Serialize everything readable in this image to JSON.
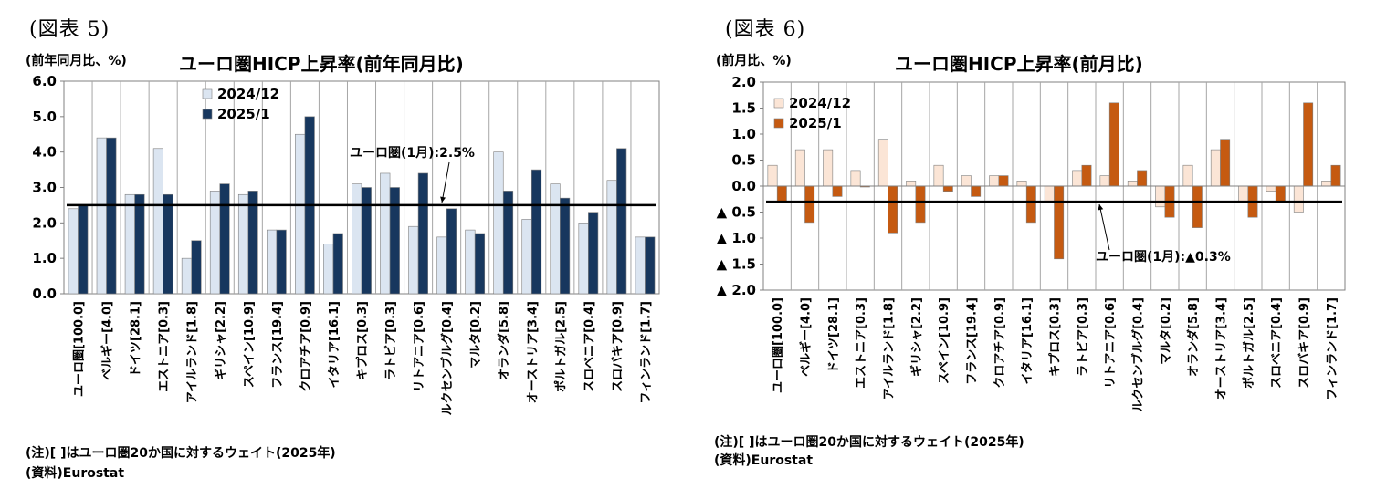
{
  "chart_data": [
    {
      "type": "bar",
      "figure_label": "(図表 5)",
      "title": "ユーロ圏HICP上昇率(前年同月比)",
      "unit_label": "(前年同月比、%)",
      "ylim": [
        0,
        6
      ],
      "ytick_labels": [
        "0.0",
        "1.0",
        "2.0",
        "3.0",
        "4.0",
        "5.0",
        "6.0"
      ],
      "categories": [
        "ユーロ圏[100.0]",
        "ベルギー[4.0]",
        "ドイツ[28.1]",
        "エストニア[0.3]",
        "アイルランド[1.8]",
        "ギリシャ[2.2]",
        "スペイン[10.9]",
        "フランス[19.4]",
        "クロアチア[0.9]",
        "イタリア[16.1]",
        "キプロス[0.3]",
        "ラトビア[0.3]",
        "リトアニア[0.6]",
        "ルクセンブルグ[0.4]",
        "マルタ[0.2]",
        "オランダ[5.8]",
        "オーストリア[3.4]",
        "ポルトガル[2.5]",
        "スロベニア[0.4]",
        "スロバキア[0.9]",
        "フィンランド[1.7]"
      ],
      "series": [
        {
          "name": "2024/12",
          "color": "#dbe5f1",
          "values": [
            2.4,
            4.4,
            2.8,
            4.1,
            1.0,
            2.9,
            2.8,
            1.8,
            4.5,
            1.4,
            3.1,
            3.4,
            1.9,
            1.6,
            1.8,
            4.0,
            2.1,
            3.1,
            2.0,
            3.2,
            1.6
          ]
        },
        {
          "name": "2025/1",
          "color": "#17375e",
          "values": [
            2.5,
            4.4,
            2.8,
            2.8,
            1.5,
            3.1,
            2.9,
            1.8,
            5.0,
            1.7,
            3.0,
            3.0,
            3.4,
            2.4,
            1.7,
            2.9,
            3.5,
            2.7,
            2.3,
            4.1,
            1.6
          ]
        }
      ],
      "reference_line": {
        "value": 2.5,
        "label": "ユーロ圏(1月):2.5%"
      },
      "grid": "vertical",
      "legend": "top-left",
      "note": "(注)[ ]はユーロ圏20か国に対するウェイト(2025年)",
      "source": "(資料)Eurostat"
    },
    {
      "type": "bar",
      "figure_label": "(図表 6)",
      "title": "ユーロ圏HICP上昇率(前月比)",
      "unit_label": "(前月比、%)",
      "ylim": [
        -2,
        2
      ],
      "ytick_labels": [
        "▲ 2.0",
        "▲ 1.5",
        "▲ 1.0",
        "▲ 0.5",
        "0.0",
        "0.5",
        "1.0",
        "1.5",
        "2.0"
      ],
      "categories": [
        "ユーロ圏[100.0]",
        "ベルギー[4.0]",
        "ドイツ[28.1]",
        "エストニア[0.3]",
        "アイルランド[1.8]",
        "ギリシャ[2.2]",
        "スペイン[10.9]",
        "フランス[19.4]",
        "クロアチア[0.9]",
        "イタリア[16.1]",
        "キプロス[0.3]",
        "ラトビア[0.3]",
        "リトアニア[0.6]",
        "ルクセンブルグ[0.4]",
        "マルタ[0.2]",
        "オランダ[5.8]",
        "オーストリア[3.4]",
        "ポルトガル[2.5]",
        "スロベニア[0.4]",
        "スロバキア[0.9]",
        "フィンランド[1.7]"
      ],
      "series": [
        {
          "name": "2024/12",
          "color": "#fbe5d6",
          "values": [
            0.4,
            0.7,
            0.7,
            0.3,
            0.9,
            0.1,
            0.4,
            0.2,
            0.2,
            0.1,
            -0.3,
            0.3,
            0.2,
            0.1,
            -0.4,
            0.4,
            0.7,
            -0.3,
            -0.1,
            -0.5,
            0.1
          ]
        },
        {
          "name": "2025/1",
          "color": "#c55a11",
          "values": [
            -0.3,
            -0.7,
            -0.2,
            0.0,
            -0.9,
            -0.7,
            -0.1,
            -0.2,
            0.2,
            -0.7,
            -1.4,
            0.4,
            1.6,
            0.3,
            -0.6,
            -0.8,
            0.9,
            -0.6,
            -0.3,
            1.6,
            0.4
          ]
        }
      ],
      "reference_line": {
        "value": -0.3,
        "label": "ユーロ圏(1月):▲0.3%"
      },
      "grid": "vertical",
      "legend": "top-left",
      "note": "(注)[ ]はユーロ圏20か国に対するウェイト(2025年)",
      "source": "(資料)Eurostat"
    }
  ]
}
